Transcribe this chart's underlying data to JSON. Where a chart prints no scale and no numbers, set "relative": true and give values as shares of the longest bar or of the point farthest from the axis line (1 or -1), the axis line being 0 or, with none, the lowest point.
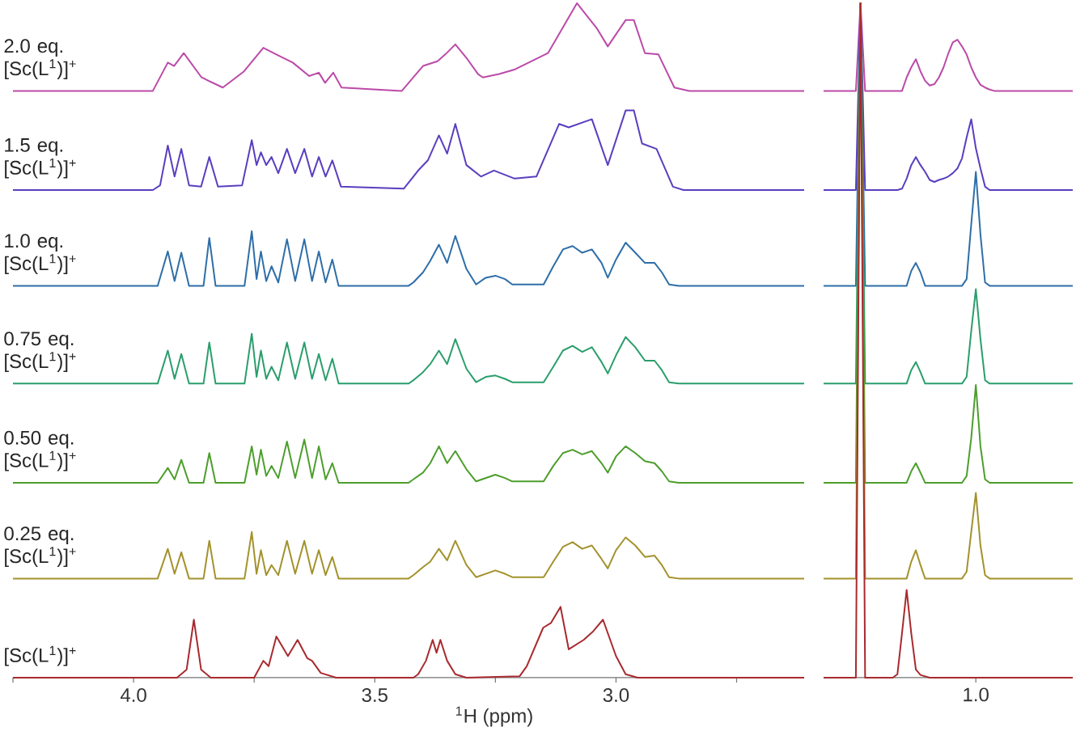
{
  "chart_data": [
    {
      "type": "line",
      "relative": true,
      "xlim": [
        4.25,
        2.61
      ],
      "xlabel": "$^{1}$H (ppm)",
      "xticks": [
        {
          "value": 4.25,
          "label": null
        },
        {
          "value": 4.0,
          "label": "4.0"
        },
        {
          "value": 3.75,
          "label": null
        },
        {
          "value": 3.5,
          "label": "3.5"
        },
        {
          "value": 3.25,
          "label": null
        },
        {
          "value": 3.0,
          "label": "3.0"
        },
        {
          "value": 2.75,
          "label": null
        }
      ],
      "series": [
        {
          "name": "2.0 eq. [Sc(L$^{1}$)]$^{+}$",
          "color": "#bb4aa8",
          "x": [
            4.25,
            3.96,
            3.929,
            3.916,
            3.896,
            3.859,
            3.815,
            3.771,
            3.731,
            3.704,
            3.67,
            3.636,
            3.616,
            3.603,
            3.586,
            3.569,
            3.444,
            3.4,
            3.37,
            3.354,
            3.333,
            3.31,
            3.286,
            3.276,
            3.242,
            3.209,
            3.141,
            3.081,
            3.04,
            3.017,
            2.98,
            2.963,
            2.94,
            2.912,
            2.879,
            2.848,
            2.61
          ],
          "values": [
            0.87,
            0.87,
            0.912,
            0.907,
            0.926,
            0.89,
            0.875,
            0.899,
            0.934,
            0.924,
            0.912,
            0.892,
            0.897,
            0.882,
            0.897,
            0.875,
            0.87,
            0.907,
            0.914,
            0.924,
            0.939,
            0.919,
            0.895,
            0.89,
            0.895,
            0.902,
            0.926,
            1,
            0.963,
            0.936,
            0.975,
            0.975,
            0.926,
            0.924,
            0.875,
            0.87,
            0.87
          ]
        },
        {
          "name": "1.5 eq. [Sc(L$^{1}$)]$^{+}$",
          "color": "#5a3ebf",
          "x": [
            4.25,
            3.96,
            3.945,
            3.929,
            3.915,
            3.901,
            3.885,
            3.86,
            3.843,
            3.825,
            3.775,
            3.755,
            3.745,
            3.736,
            3.725,
            3.714,
            3.7,
            3.682,
            3.665,
            3.646,
            3.63,
            3.616,
            3.602,
            3.588,
            3.57,
            3.44,
            3.41,
            3.39,
            3.367,
            3.35,
            3.333,
            3.31,
            3.28,
            3.253,
            3.21,
            3.165,
            3.118,
            3.098,
            3.05,
            3.017,
            2.98,
            2.963,
            2.946,
            2.916,
            2.882,
            2.86,
            2.61
          ],
          "values": [
            0.723,
            0.723,
            0.73,
            0.789,
            0.743,
            0.784,
            0.73,
            0.728,
            0.772,
            0.728,
            0.73,
            0.797,
            0.76,
            0.779,
            0.76,
            0.772,
            0.748,
            0.784,
            0.748,
            0.784,
            0.743,
            0.772,
            0.743,
            0.767,
            0.728,
            0.725,
            0.752,
            0.767,
            0.804,
            0.777,
            0.821,
            0.76,
            0.743,
            0.752,
            0.74,
            0.743,
            0.821,
            0.816,
            0.828,
            0.76,
            0.841,
            0.841,
            0.792,
            0.784,
            0.728,
            0.723,
            0.723
          ]
        },
        {
          "name": "1.0 eq. [Sc(L$^{1}$)]$^{+}$",
          "color": "#2e6ea8",
          "x": [
            4.25,
            3.95,
            3.929,
            3.915,
            3.901,
            3.885,
            3.855,
            3.843,
            3.83,
            3.77,
            3.755,
            3.745,
            3.736,
            3.725,
            3.714,
            3.7,
            3.682,
            3.665,
            3.646,
            3.63,
            3.616,
            3.602,
            3.588,
            3.575,
            3.43,
            3.42,
            3.4,
            3.385,
            3.367,
            3.35,
            3.333,
            3.31,
            3.29,
            3.27,
            3.25,
            3.23,
            3.215,
            3.15,
            3.13,
            3.11,
            3.09,
            3.07,
            3.05,
            3.03,
            3.017,
            3.0,
            2.98,
            2.96,
            2.94,
            2.92,
            2.905,
            2.89,
            2.87,
            2.61
          ],
          "values": [
            0.581,
            0.581,
            0.632,
            0.588,
            0.63,
            0.581,
            0.581,
            0.652,
            0.581,
            0.581,
            0.662,
            0.591,
            0.632,
            0.588,
            0.61,
            0.586,
            0.65,
            0.588,
            0.65,
            0.588,
            0.632,
            0.586,
            0.62,
            0.581,
            0.581,
            0.586,
            0.601,
            0.618,
            0.642,
            0.615,
            0.655,
            0.606,
            0.583,
            0.593,
            0.596,
            0.591,
            0.583,
            0.583,
            0.61,
            0.635,
            0.64,
            0.63,
            0.635,
            0.615,
            0.593,
            0.62,
            0.645,
            0.63,
            0.615,
            0.615,
            0.601,
            0.583,
            0.581,
            0.581
          ]
        },
        {
          "name": "0.75 eq. [Sc(L$^{1}$)]$^{+}$",
          "color": "#2a9e6c",
          "x": [
            4.25,
            3.95,
            3.929,
            3.915,
            3.901,
            3.885,
            3.855,
            3.843,
            3.83,
            3.77,
            3.755,
            3.745,
            3.736,
            3.725,
            3.714,
            3.7,
            3.682,
            3.665,
            3.646,
            3.63,
            3.616,
            3.602,
            3.588,
            3.575,
            3.43,
            3.42,
            3.4,
            3.385,
            3.367,
            3.35,
            3.333,
            3.31,
            3.29,
            3.27,
            3.25,
            3.23,
            3.215,
            3.15,
            3.13,
            3.11,
            3.09,
            3.07,
            3.05,
            3.03,
            3.017,
            3.0,
            2.98,
            2.96,
            2.94,
            2.92,
            2.905,
            2.89,
            2.87,
            2.61
          ],
          "values": [
            0.436,
            0.436,
            0.485,
            0.443,
            0.48,
            0.436,
            0.436,
            0.497,
            0.436,
            0.436,
            0.51,
            0.446,
            0.485,
            0.443,
            0.461,
            0.441,
            0.497,
            0.443,
            0.497,
            0.443,
            0.48,
            0.441,
            0.473,
            0.436,
            0.436,
            0.441,
            0.453,
            0.465,
            0.485,
            0.465,
            0.502,
            0.458,
            0.438,
            0.446,
            0.448,
            0.443,
            0.438,
            0.438,
            0.461,
            0.485,
            0.492,
            0.483,
            0.49,
            0.468,
            0.451,
            0.478,
            0.505,
            0.49,
            0.47,
            0.47,
            0.456,
            0.438,
            0.436,
            0.436
          ]
        },
        {
          "name": "0.50 eq. [Sc(L$^{1}$)]$^{+}$",
          "color": "#4c9e2c",
          "x": [
            4.25,
            3.95,
            3.929,
            3.915,
            3.901,
            3.885,
            3.855,
            3.843,
            3.83,
            3.77,
            3.755,
            3.745,
            3.736,
            3.725,
            3.714,
            3.7,
            3.682,
            3.665,
            3.646,
            3.63,
            3.616,
            3.602,
            3.588,
            3.575,
            3.43,
            3.42,
            3.4,
            3.385,
            3.367,
            3.35,
            3.333,
            3.31,
            3.29,
            3.27,
            3.25,
            3.23,
            3.215,
            3.15,
            3.13,
            3.11,
            3.09,
            3.07,
            3.05,
            3.03,
            3.017,
            3.0,
            2.98,
            2.96,
            2.94,
            2.92,
            2.905,
            2.89,
            2.87,
            2.61
          ],
          "values": [
            0.289,
            0.289,
            0.311,
            0.294,
            0.323,
            0.289,
            0.289,
            0.333,
            0.289,
            0.289,
            0.343,
            0.301,
            0.338,
            0.299,
            0.314,
            0.296,
            0.35,
            0.296,
            0.353,
            0.296,
            0.343,
            0.294,
            0.318,
            0.289,
            0.289,
            0.294,
            0.304,
            0.318,
            0.343,
            0.318,
            0.336,
            0.309,
            0.291,
            0.296,
            0.301,
            0.296,
            0.291,
            0.291,
            0.314,
            0.333,
            0.338,
            0.331,
            0.336,
            0.318,
            0.304,
            0.328,
            0.343,
            0.333,
            0.321,
            0.318,
            0.306,
            0.291,
            0.289,
            0.289
          ]
        },
        {
          "name": "0.25 eq. [Sc(L$^{1}$)]$^{+}$",
          "color": "#a3922c",
          "x": [
            4.25,
            3.95,
            3.929,
            3.915,
            3.901,
            3.885,
            3.855,
            3.843,
            3.83,
            3.77,
            3.755,
            3.745,
            3.736,
            3.725,
            3.714,
            3.7,
            3.682,
            3.665,
            3.646,
            3.63,
            3.616,
            3.602,
            3.588,
            3.575,
            3.43,
            3.42,
            3.4,
            3.385,
            3.367,
            3.35,
            3.333,
            3.31,
            3.29,
            3.27,
            3.25,
            3.23,
            3.215,
            3.15,
            3.13,
            3.11,
            3.09,
            3.07,
            3.05,
            3.03,
            3.017,
            3.0,
            2.98,
            2.96,
            2.94,
            2.92,
            2.905,
            2.89,
            2.87,
            2.61
          ],
          "values": [
            0.147,
            0.147,
            0.191,
            0.154,
            0.186,
            0.147,
            0.147,
            0.203,
            0.147,
            0.147,
            0.216,
            0.154,
            0.189,
            0.152,
            0.167,
            0.152,
            0.203,
            0.154,
            0.203,
            0.154,
            0.189,
            0.152,
            0.179,
            0.147,
            0.147,
            0.152,
            0.164,
            0.172,
            0.191,
            0.174,
            0.203,
            0.167,
            0.149,
            0.154,
            0.159,
            0.154,
            0.149,
            0.149,
            0.172,
            0.194,
            0.201,
            0.191,
            0.196,
            0.176,
            0.162,
            0.189,
            0.208,
            0.196,
            0.179,
            0.181,
            0.167,
            0.149,
            0.147,
            0.147
          ]
        },
        {
          "name": "[Sc(L$^{1}$)]$^{+}$",
          "color": "#a82a2e",
          "x": [
            4.25,
            3.91,
            3.89,
            3.875,
            3.86,
            3.84,
            3.75,
            3.731,
            3.72,
            3.704,
            3.68,
            3.66,
            3.64,
            3.63,
            3.612,
            3.58,
            3.42,
            3.41,
            3.394,
            3.38,
            3.372,
            3.364,
            3.35,
            3.333,
            3.31,
            3.2,
            3.185,
            3.151,
            3.135,
            3.115,
            3.098,
            3.067,
            3.047,
            3.027,
            3.0,
            2.98,
            2.955,
            2.61
          ],
          "values": [
            0,
            0,
            0.012,
            0.086,
            0.012,
            0,
            0,
            0.025,
            0.017,
            0.061,
            0.032,
            0.056,
            0.029,
            0.025,
            0.007,
            0,
            0,
            0.005,
            0.025,
            0.056,
            0.037,
            0.056,
            0.025,
            0.005,
            0,
            0.002,
            0.017,
            0.074,
            0.081,
            0.105,
            0.042,
            0.056,
            0.069,
            0.086,
            0.032,
            0.005,
            0,
            0
          ]
        }
      ]
    },
    {
      "type": "line",
      "relative": true,
      "categories": [
        null,
        null,
        null,
        null,
        null,
        null,
        null,
        null,
        null,
        null,
        null,
        null,
        null,
        null,
        null,
        null,
        null,
        null,
        null,
        null,
        null,
        null,
        null,
        null,
        null,
        null,
        null,
        null,
        null,
        null,
        null,
        null,
        null,
        null,
        null,
        null,
        null,
        null,
        null,
        null,
        null,
        null,
        null,
        null,
        null,
        null,
        null,
        null,
        null,
        null,
        null,
        null,
        null,
        null,
        null
      ],
      "annotations": [
        "1.0"
      ],
      "series": [
        {
          "color": "#bb4aa8",
          "values": [
            0.87,
            0.87,
            0.87,
            0.87,
            0.87,
            0.87,
            0.87,
            0.87,
            1,
            0.87,
            0.87,
            0.87,
            0.87,
            0.87,
            0.87,
            0.87,
            0.87,
            0.87,
            0.89,
            0.905,
            0.917,
            0.899,
            0.885,
            0.878,
            0.88,
            0.89,
            0.905,
            0.925,
            0.942,
            0.946,
            0.936,
            0.924,
            0.905,
            0.89,
            0.879,
            0.875,
            0.872,
            0.87,
            0.87,
            0.87,
            0.87,
            0.87,
            0.87,
            0.87,
            0.87,
            0.87,
            0.87,
            0.87,
            0.87,
            0.87,
            0.87,
            0.87,
            0.87,
            0.87,
            0.87
          ]
        },
        {
          "color": "#5a3ebf",
          "values": [
            0.723,
            0.723,
            0.723,
            0.723,
            0.723,
            0.723,
            0.723,
            0.723,
            1,
            0.723,
            0.723,
            0.723,
            0.723,
            0.723,
            0.723,
            0.723,
            0.723,
            0.725,
            0.74,
            0.76,
            0.772,
            0.76,
            0.75,
            0.738,
            0.735,
            0.738,
            0.74,
            0.743,
            0.748,
            0.755,
            0.77,
            0.801,
            0.828,
            0.785,
            0.755,
            0.728,
            0.723,
            0.723,
            0.723,
            0.723,
            0.723,
            0.723,
            0.723,
            0.723,
            0.723,
            0.723,
            0.723,
            0.723,
            0.723,
            0.723,
            0.723,
            0.723,
            0.723,
            0.723,
            0.723
          ]
        },
        {
          "color": "#2e6ea8",
          "values": [
            0.581,
            0.581,
            0.581,
            0.581,
            0.581,
            0.581,
            0.581,
            0.581,
            1,
            0.581,
            0.581,
            0.581,
            0.581,
            0.581,
            0.581,
            0.581,
            0.581,
            0.581,
            0.581,
            0.603,
            0.615,
            0.601,
            0.581,
            0.581,
            0.581,
            0.581,
            0.581,
            0.581,
            0.581,
            0.581,
            0.581,
            0.591,
            0.672,
            0.75,
            0.657,
            0.586,
            0.581,
            0.581,
            0.581,
            0.581,
            0.581,
            0.581,
            0.581,
            0.581,
            0.581,
            0.581,
            0.581,
            0.581,
            0.581,
            0.581,
            0.581,
            0.581,
            0.581,
            0.581,
            0.581
          ]
        },
        {
          "color": "#2a9e6c",
          "values": [
            0.436,
            0.436,
            0.436,
            0.436,
            0.436,
            0.436,
            0.436,
            0.436,
            1,
            0.436,
            0.436,
            0.436,
            0.436,
            0.436,
            0.436,
            0.436,
            0.436,
            0.436,
            0.436,
            0.456,
            0.468,
            0.453,
            0.436,
            0.436,
            0.436,
            0.436,
            0.436,
            0.436,
            0.436,
            0.436,
            0.436,
            0.446,
            0.514,
            0.576,
            0.502,
            0.441,
            0.436,
            0.436,
            0.436,
            0.436,
            0.436,
            0.436,
            0.436,
            0.436,
            0.436,
            0.436,
            0.436,
            0.436,
            0.436,
            0.436,
            0.436,
            0.436,
            0.436,
            0.436,
            0.436
          ]
        },
        {
          "color": "#4c9e2c",
          "values": [
            0.289,
            0.289,
            0.289,
            0.289,
            0.289,
            0.289,
            0.289,
            0.289,
            1,
            0.289,
            0.289,
            0.289,
            0.289,
            0.289,
            0.289,
            0.289,
            0.289,
            0.289,
            0.289,
            0.306,
            0.318,
            0.304,
            0.289,
            0.289,
            0.289,
            0.289,
            0.289,
            0.289,
            0.289,
            0.289,
            0.289,
            0.299,
            0.355,
            0.434,
            0.343,
            0.294,
            0.289,
            0.289,
            0.289,
            0.289,
            0.289,
            0.289,
            0.289,
            0.289,
            0.289,
            0.289,
            0.289,
            0.289,
            0.289,
            0.289,
            0.289,
            0.289,
            0.289,
            0.289,
            0.289
          ]
        },
        {
          "color": "#a3922c",
          "values": [
            0.147,
            0.147,
            0.147,
            0.147,
            0.147,
            0.147,
            0.147,
            0.147,
            1,
            0.147,
            0.147,
            0.147,
            0.147,
            0.147,
            0.147,
            0.147,
            0.147,
            0.147,
            0.147,
            0.172,
            0.189,
            0.167,
            0.147,
            0.147,
            0.147,
            0.147,
            0.147,
            0.147,
            0.147,
            0.147,
            0.147,
            0.157,
            0.216,
            0.274,
            0.196,
            0.152,
            0.147,
            0.147,
            0.147,
            0.147,
            0.147,
            0.147,
            0.147,
            0.147,
            0.147,
            0.147,
            0.147,
            0.147,
            0.147,
            0.147,
            0.147,
            0.147,
            0.147,
            0.147,
            0.147
          ]
        },
        {
          "color": "#a82a2e",
          "values": [
            0,
            0,
            0,
            0,
            0,
            0,
            0,
            0,
            1,
            0,
            0,
            0,
            0,
            0,
            0,
            0,
            0.005,
            0.066,
            0.13,
            0.066,
            0.012,
            0.004,
            0.002,
            0,
            0,
            0,
            0,
            0,
            0,
            0,
            0,
            0,
            0,
            0,
            0,
            0,
            0,
            0,
            0,
            0,
            0,
            0,
            0,
            0,
            0,
            0,
            0,
            0,
            0,
            0,
            0,
            0,
            0,
            0,
            0
          ]
        }
      ]
    }
  ]
}
